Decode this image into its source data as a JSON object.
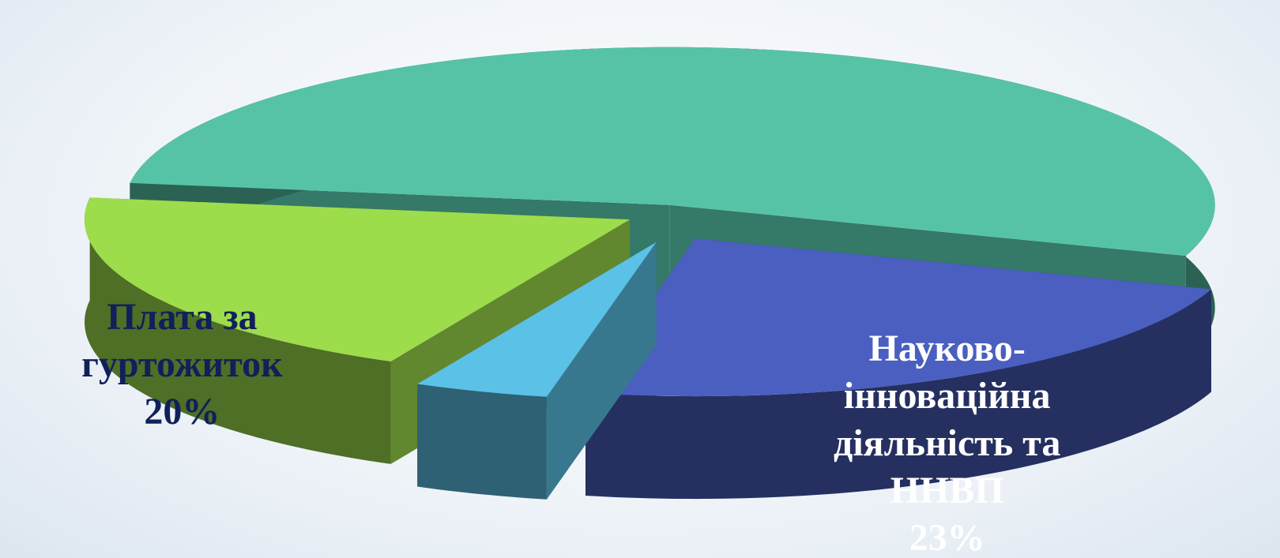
{
  "chart_data": {
    "type": "pie3d",
    "categories": [
      null,
      "Науково-інноваційна діяльність та ННВП",
      null,
      "Плата за гуртожиток"
    ],
    "values": [
      53,
      23,
      4,
      20
    ],
    "value_labels": [
      null,
      "23%",
      null,
      "20%"
    ],
    "colors": [
      "#56c3a7",
      "#4a5fbf",
      "#5bc1e7",
      "#9ddc4b"
    ]
  }
}
